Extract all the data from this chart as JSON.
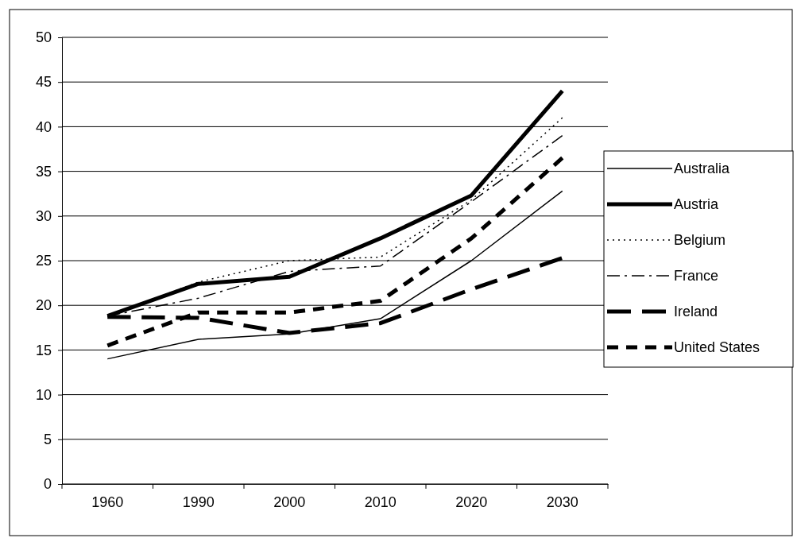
{
  "chart_data": {
    "type": "line",
    "categories": [
      "1960",
      "1990",
      "2000",
      "2010",
      "2020",
      "2030"
    ],
    "series": [
      {
        "name": "Australia",
        "color": "#000000",
        "line_style": "solid",
        "values": [
          14.0,
          16.2,
          16.8,
          18.5,
          25.0,
          32.8
        ]
      },
      {
        "name": "Austria",
        "color": "#000000",
        "line_style": "solid",
        "values": [
          18.8,
          22.4,
          23.2,
          27.5,
          32.3,
          44.0
        ]
      },
      {
        "name": "Belgium",
        "color": "#000000",
        "line_style": "dotted",
        "values": [
          18.8,
          22.6,
          25.0,
          25.4,
          31.8,
          41.0
        ]
      },
      {
        "name": "France",
        "color": "#000000",
        "line_style": "dashdot",
        "values": [
          18.8,
          20.8,
          23.8,
          24.4,
          31.6,
          39.0
        ]
      },
      {
        "name": "Ireland",
        "color": "#000000",
        "line_style": "longdash",
        "values": [
          18.7,
          18.6,
          16.9,
          18.0,
          21.8,
          25.3
        ]
      },
      {
        "name": "United States",
        "color": "#000000",
        "line_style": "dashed",
        "values": [
          15.5,
          19.2,
          19.2,
          20.5,
          27.5,
          36.5
        ]
      }
    ],
    "ylim": [
      0,
      50
    ],
    "yticks": [
      0,
      5,
      10,
      15,
      20,
      25,
      30,
      35,
      40,
      45,
      50
    ],
    "grid": "y",
    "legend": "right",
    "marker": "none"
  }
}
